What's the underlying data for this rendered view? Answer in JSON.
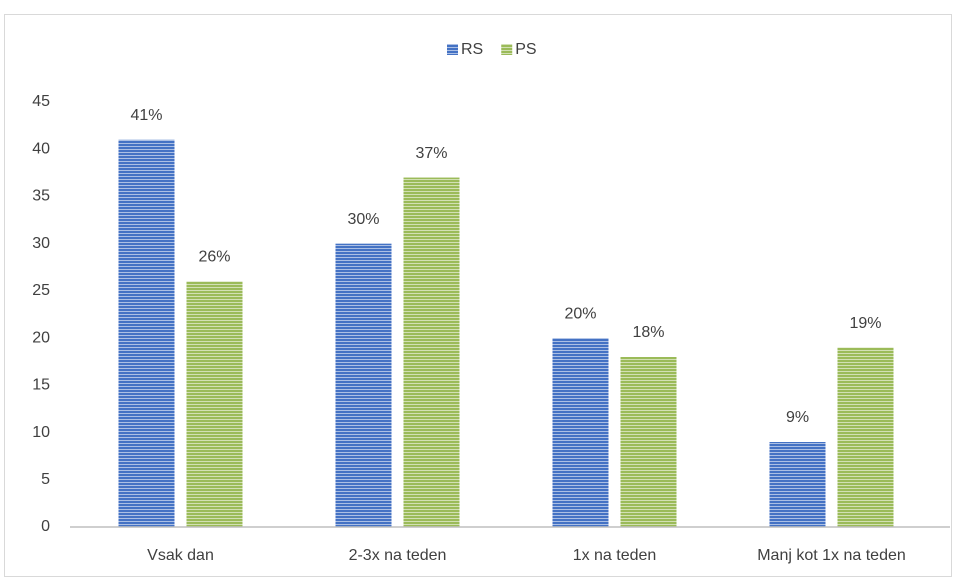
{
  "chart_data": {
    "type": "bar",
    "categories": [
      "Vsak dan",
      "2-3x na teden",
      "1x na teden",
      "Manj kot 1x na teden"
    ],
    "series": [
      {
        "name": "RS",
        "color": "#4472c4",
        "values": [
          41,
          30,
          20,
          9
        ],
        "value_labels": [
          "41%",
          "30%",
          "20%",
          "9%"
        ]
      },
      {
        "name": "PS",
        "color": "#9bbb59",
        "values": [
          26,
          37,
          18,
          19
        ],
        "value_labels": [
          "26%",
          "37%",
          "18%",
          "19%"
        ]
      }
    ],
    "ylim": [
      0,
      45
    ],
    "yticks": [
      0,
      5,
      10,
      15,
      20,
      25,
      30,
      35,
      40,
      45
    ],
    "grid": false,
    "legend": "top"
  }
}
